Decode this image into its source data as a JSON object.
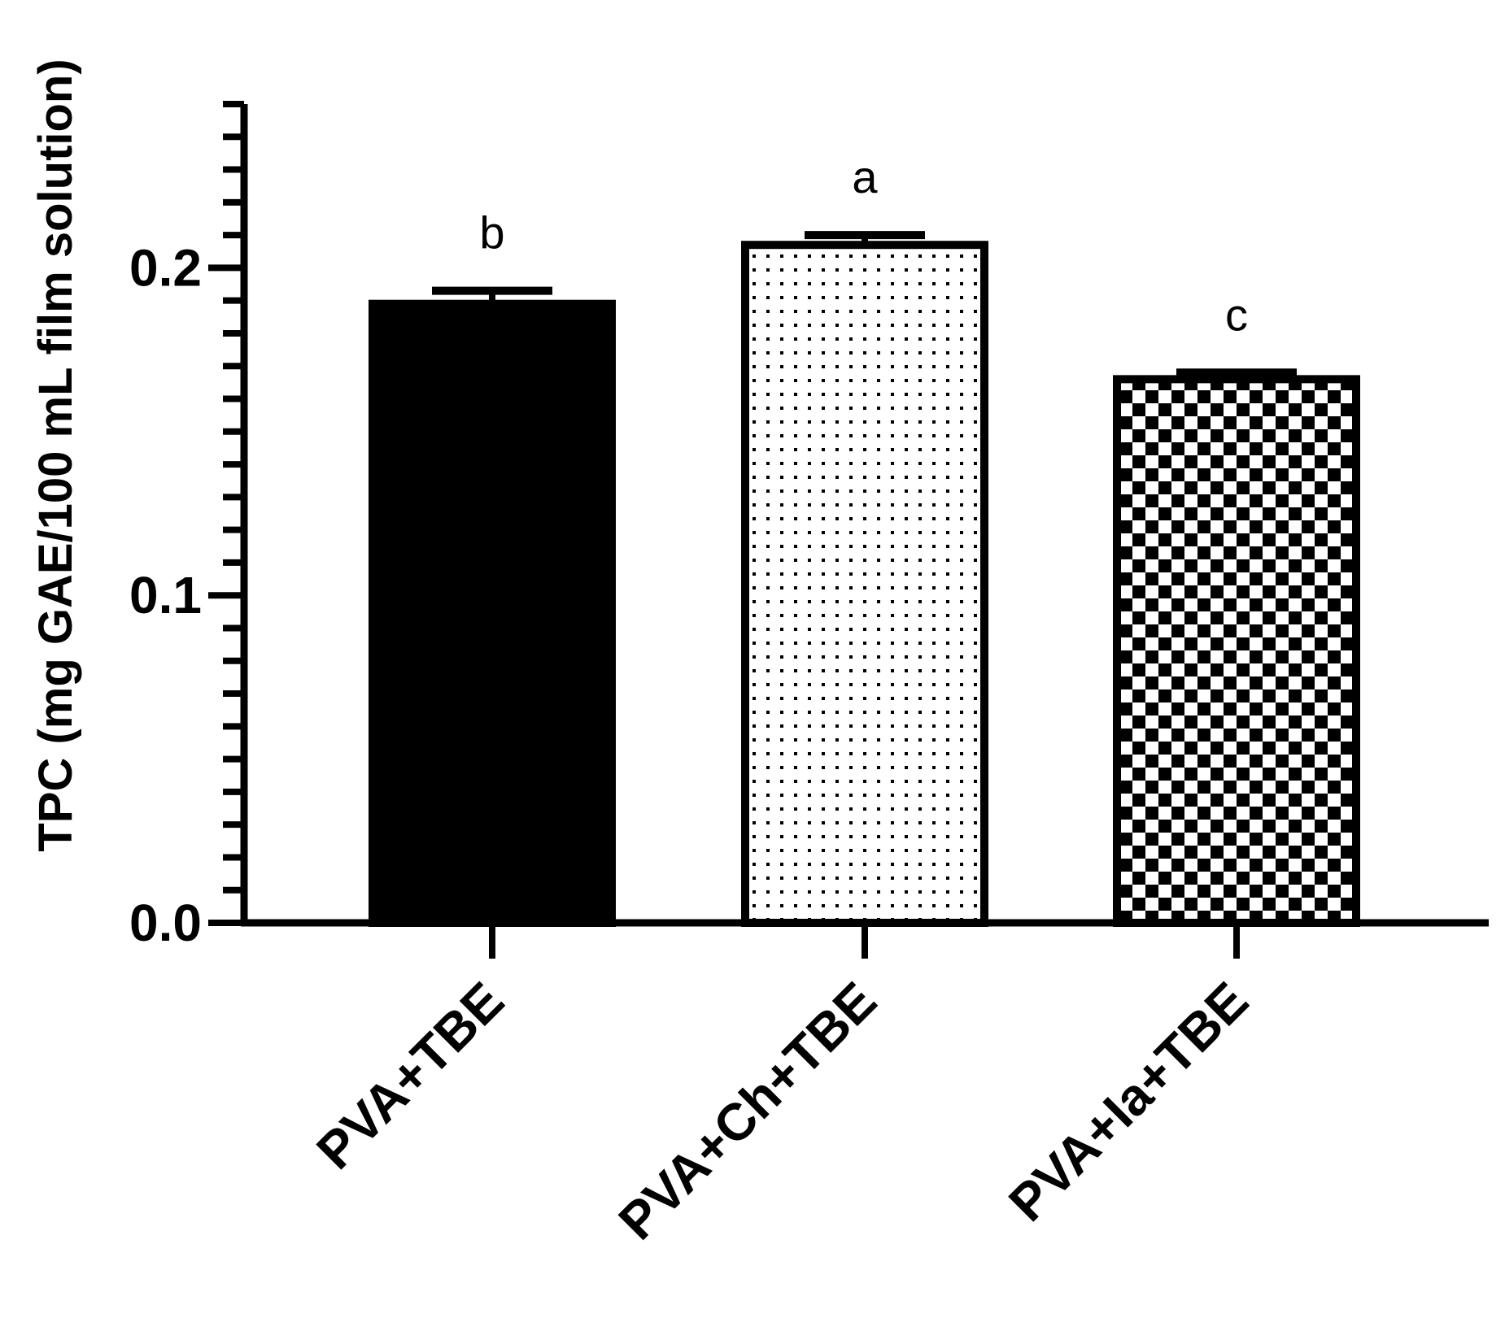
{
  "chart_data": {
    "type": "bar",
    "title": "",
    "xlabel": "",
    "ylabel": "TPC (mg GAE/100 mL film solution)",
    "ylim": [
      0,
      0.25
    ],
    "yticks": [
      {
        "value": 0.0,
        "label": "0.0"
      },
      {
        "value": 0.1,
        "label": "0.1"
      },
      {
        "value": 0.2,
        "label": "0.2"
      }
    ],
    "minor_tick_step": 0.01,
    "grid": false,
    "legend": "none",
    "categories": [
      "PVA+TBE",
      "PVA+Ch+TBE",
      "PVA+Ia+TBE"
    ],
    "series": [
      {
        "values": [
          0.189,
          0.207,
          0.166
        ],
        "errors": [
          0.004,
          0.003,
          0.002
        ],
        "significance_letters": [
          "b",
          "a",
          "c"
        ],
        "fills": [
          "solid",
          "dots",
          "checker"
        ]
      }
    ],
    "colors": {
      "ink": "#000000",
      "background": "#ffffff"
    }
  }
}
